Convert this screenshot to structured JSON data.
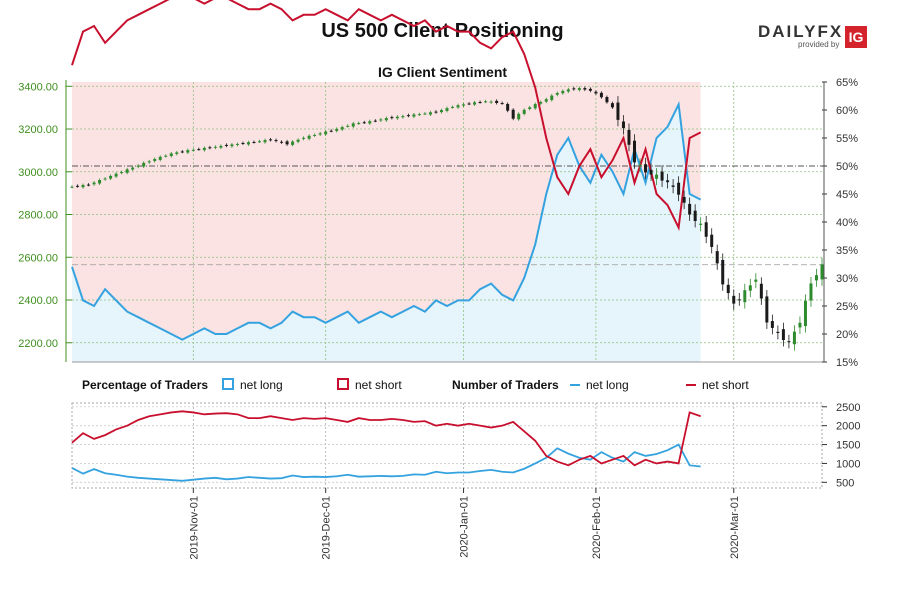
{
  "title": "US 500 Client Positioning",
  "logo": {
    "brand": "DAILYFX",
    "provided_by": "provided by",
    "ig": "IG"
  },
  "colors": {
    "price_axis": "#3f8f1f",
    "sentiment_axis": "#3a6fb0",
    "net_long": "#35a2e0",
    "net_short": "#c8102e",
    "candle_up": "#2e8b2e",
    "candle_down": "#1a1a1a",
    "short_fill": "#fbe3e3",
    "long_fill": "#e6f4fb"
  },
  "legend": {
    "pct_title": "Percentage of Traders",
    "num_title": "Number of Traders",
    "net_long": "net long",
    "net_short": "net short"
  },
  "chart_data": [
    {
      "type": "line",
      "title": "IG Client Sentiment",
      "x_ticks": [
        "2019-Nov-01",
        "2019-Dec-01",
        "2020-Jan-01",
        "2020-Feb-01",
        "2020-Mar-01"
      ],
      "left_axis": {
        "ticks": [
          "2200.00",
          "2400.00",
          "2600.00",
          "2800.00",
          "3000.00",
          "3200.00",
          "3400.00"
        ],
        "ylim": [
          2110,
          3420
        ]
      },
      "right_axis": {
        "ticks": [
          "15%",
          "20%",
          "25%",
          "30%",
          "35%",
          "40%",
          "45%",
          "50%",
          "55%",
          "60%",
          "65%"
        ],
        "ylim": [
          15,
          65
        ]
      },
      "reference_lines": {
        "sentiment_pct": 50,
        "price": 2565
      },
      "net_long_pct_points": [
        [
          0,
          32
        ],
        [
          2,
          26
        ],
        [
          4,
          25
        ],
        [
          6,
          28
        ],
        [
          8,
          26
        ],
        [
          10,
          24
        ],
        [
          12,
          23
        ],
        [
          14,
          22
        ],
        [
          16,
          21
        ],
        [
          18,
          20
        ],
        [
          20,
          19
        ],
        [
          22,
          20
        ],
        [
          24,
          21
        ],
        [
          26,
          20
        ],
        [
          28,
          20
        ],
        [
          30,
          21
        ],
        [
          32,
          22
        ],
        [
          34,
          22
        ],
        [
          36,
          21
        ],
        [
          38,
          22
        ],
        [
          40,
          24
        ],
        [
          42,
          23
        ],
        [
          44,
          23
        ],
        [
          46,
          22
        ],
        [
          48,
          23
        ],
        [
          50,
          24
        ],
        [
          52,
          22
        ],
        [
          54,
          23
        ],
        [
          56,
          24
        ],
        [
          58,
          23
        ],
        [
          60,
          24
        ],
        [
          62,
          25
        ],
        [
          64,
          24
        ],
        [
          66,
          26
        ],
        [
          68,
          25
        ],
        [
          70,
          26
        ],
        [
          72,
          26
        ],
        [
          74,
          28
        ],
        [
          76,
          29
        ],
        [
          78,
          27
        ],
        [
          80,
          26
        ],
        [
          82,
          30
        ],
        [
          84,
          36
        ],
        [
          86,
          45
        ],
        [
          88,
          52
        ],
        [
          90,
          55
        ],
        [
          92,
          50
        ],
        [
          94,
          47
        ],
        [
          96,
          52
        ],
        [
          98,
          49
        ],
        [
          100,
          45
        ],
        [
          102,
          53
        ],
        [
          104,
          47
        ],
        [
          106,
          55
        ],
        [
          108,
          57
        ],
        [
          110,
          61
        ],
        [
          112,
          45
        ],
        [
          114,
          44
        ]
      ],
      "net_short_pct_points": [
        [
          0,
          68
        ],
        [
          2,
          74
        ],
        [
          4,
          75
        ],
        [
          6,
          72
        ],
        [
          8,
          74
        ],
        [
          10,
          76
        ],
        [
          12,
          77
        ],
        [
          14,
          78
        ],
        [
          16,
          79
        ],
        [
          18,
          80
        ],
        [
          20,
          81
        ],
        [
          22,
          80
        ],
        [
          24,
          79
        ],
        [
          26,
          80
        ],
        [
          28,
          80
        ],
        [
          30,
          79
        ],
        [
          32,
          78
        ],
        [
          34,
          78
        ],
        [
          36,
          79
        ],
        [
          38,
          78
        ],
        [
          40,
          76
        ],
        [
          42,
          77
        ],
        [
          44,
          77
        ],
        [
          46,
          78
        ],
        [
          48,
          77
        ],
        [
          50,
          76
        ],
        [
          52,
          78
        ],
        [
          54,
          77
        ],
        [
          56,
          76
        ],
        [
          58,
          77
        ],
        [
          60,
          76
        ],
        [
          62,
          75
        ],
        [
          64,
          76
        ],
        [
          66,
          74
        ],
        [
          68,
          75
        ],
        [
          70,
          74
        ],
        [
          72,
          74
        ],
        [
          74,
          72
        ],
        [
          76,
          71
        ],
        [
          78,
          73
        ],
        [
          80,
          74
        ],
        [
          82,
          70
        ],
        [
          84,
          64
        ],
        [
          86,
          55
        ],
        [
          88,
          48
        ],
        [
          90,
          45
        ],
        [
          92,
          50
        ],
        [
          94,
          53
        ],
        [
          96,
          48
        ],
        [
          98,
          51
        ],
        [
          100,
          55
        ],
        [
          102,
          47
        ],
        [
          104,
          53
        ],
        [
          106,
          45
        ],
        [
          108,
          43
        ],
        [
          110,
          39
        ],
        [
          112,
          55
        ],
        [
          114,
          56
        ]
      ],
      "price_points": [
        [
          0,
          2930
        ],
        [
          3,
          2940
        ],
        [
          6,
          2970
        ],
        [
          9,
          3000
        ],
        [
          12,
          3030
        ],
        [
          15,
          3060
        ],
        [
          18,
          3085
        ],
        [
          21,
          3100
        ],
        [
          24,
          3110
        ],
        [
          27,
          3120
        ],
        [
          30,
          3130
        ],
        [
          33,
          3140
        ],
        [
          36,
          3150
        ],
        [
          39,
          3130
        ],
        [
          42,
          3160
        ],
        [
          45,
          3180
        ],
        [
          48,
          3200
        ],
        [
          51,
          3225
        ],
        [
          54,
          3235
        ],
        [
          57,
          3250
        ],
        [
          60,
          3260
        ],
        [
          63,
          3270
        ],
        [
          66,
          3280
        ],
        [
          69,
          3305
        ],
        [
          72,
          3320
        ],
        [
          75,
          3330
        ],
        [
          78,
          3320
        ],
        [
          80,
          3250
        ],
        [
          82,
          3290
        ],
        [
          84,
          3315
        ],
        [
          86,
          3340
        ],
        [
          88,
          3370
        ],
        [
          90,
          3385
        ],
        [
          92,
          3390
        ],
        [
          94,
          3380
        ],
        [
          96,
          3350
        ],
        [
          98,
          3300
        ],
        [
          100,
          3200
        ],
        [
          102,
          3050
        ],
        [
          104,
          3000
        ],
        [
          106,
          2980
        ],
        [
          108,
          2950
        ],
        [
          110,
          2900
        ],
        [
          112,
          2800
        ],
        [
          114,
          2750
        ],
        [
          116,
          2650
        ],
        [
          118,
          2480
        ],
        [
          120,
          2380
        ],
        [
          122,
          2440
        ],
        [
          124,
          2500
        ],
        [
          126,
          2300
        ],
        [
          128,
          2240
        ],
        [
          130,
          2200
        ],
        [
          132,
          2300
        ],
        [
          134,
          2480
        ],
        [
          136,
          2560
        ]
      ]
    },
    {
      "type": "line",
      "title": "",
      "right_axis": {
        "ticks": [
          "500",
          "1000",
          "1500",
          "2000",
          "2500"
        ],
        "ylim": [
          350,
          2600
        ]
      },
      "net_long_traders": [
        [
          0,
          880
        ],
        [
          2,
          730
        ],
        [
          4,
          850
        ],
        [
          6,
          740
        ],
        [
          8,
          700
        ],
        [
          10,
          650
        ],
        [
          12,
          620
        ],
        [
          14,
          600
        ],
        [
          16,
          580
        ],
        [
          18,
          560
        ],
        [
          20,
          540
        ],
        [
          22,
          570
        ],
        [
          24,
          600
        ],
        [
          26,
          620
        ],
        [
          28,
          580
        ],
        [
          30,
          600
        ],
        [
          32,
          640
        ],
        [
          34,
          620
        ],
        [
          36,
          600
        ],
        [
          38,
          610
        ],
        [
          40,
          680
        ],
        [
          42,
          640
        ],
        [
          44,
          650
        ],
        [
          46,
          640
        ],
        [
          48,
          660
        ],
        [
          50,
          700
        ],
        [
          52,
          650
        ],
        [
          54,
          660
        ],
        [
          56,
          670
        ],
        [
          58,
          660
        ],
        [
          60,
          670
        ],
        [
          62,
          710
        ],
        [
          64,
          700
        ],
        [
          66,
          780
        ],
        [
          68,
          740
        ],
        [
          70,
          760
        ],
        [
          72,
          760
        ],
        [
          74,
          800
        ],
        [
          76,
          830
        ],
        [
          78,
          780
        ],
        [
          80,
          760
        ],
        [
          82,
          860
        ],
        [
          84,
          1000
        ],
        [
          86,
          1150
        ],
        [
          88,
          1400
        ],
        [
          90,
          1260
        ],
        [
          92,
          1150
        ],
        [
          94,
          1100
        ],
        [
          96,
          1300
        ],
        [
          98,
          1150
        ],
        [
          100,
          1050
        ],
        [
          102,
          1300
        ],
        [
          104,
          1200
        ],
        [
          106,
          1250
        ],
        [
          108,
          1350
        ],
        [
          110,
          1500
        ],
        [
          112,
          950
        ],
        [
          114,
          920
        ]
      ],
      "net_short_traders": [
        [
          0,
          1550
        ],
        [
          2,
          1800
        ],
        [
          4,
          1650
        ],
        [
          6,
          1750
        ],
        [
          8,
          1900
        ],
        [
          10,
          2000
        ],
        [
          12,
          2150
        ],
        [
          14,
          2250
        ],
        [
          16,
          2300
        ],
        [
          18,
          2350
        ],
        [
          20,
          2380
        ],
        [
          22,
          2350
        ],
        [
          24,
          2300
        ],
        [
          26,
          2320
        ],
        [
          28,
          2330
        ],
        [
          30,
          2300
        ],
        [
          32,
          2200
        ],
        [
          34,
          2200
        ],
        [
          36,
          2250
        ],
        [
          38,
          2200
        ],
        [
          40,
          2150
        ],
        [
          42,
          2200
        ],
        [
          44,
          2180
        ],
        [
          46,
          2200
        ],
        [
          48,
          2150
        ],
        [
          50,
          2100
        ],
        [
          52,
          2200
        ],
        [
          54,
          2150
        ],
        [
          56,
          2150
        ],
        [
          58,
          2180
        ],
        [
          60,
          2150
        ],
        [
          62,
          2100
        ],
        [
          64,
          2120
        ],
        [
          66,
          2000
        ],
        [
          68,
          2050
        ],
        [
          70,
          2000
        ],
        [
          72,
          2050
        ],
        [
          74,
          2000
        ],
        [
          76,
          1950
        ],
        [
          78,
          2000
        ],
        [
          80,
          2100
        ],
        [
          82,
          1850
        ],
        [
          84,
          1600
        ],
        [
          86,
          1200
        ],
        [
          88,
          1050
        ],
        [
          90,
          950
        ],
        [
          92,
          1100
        ],
        [
          94,
          1200
        ],
        [
          96,
          1000
        ],
        [
          98,
          1100
        ],
        [
          100,
          1200
        ],
        [
          102,
          950
        ],
        [
          104,
          1100
        ],
        [
          106,
          1000
        ],
        [
          108,
          1050
        ],
        [
          110,
          1000
        ],
        [
          112,
          2350
        ],
        [
          114,
          2250
        ]
      ]
    }
  ]
}
